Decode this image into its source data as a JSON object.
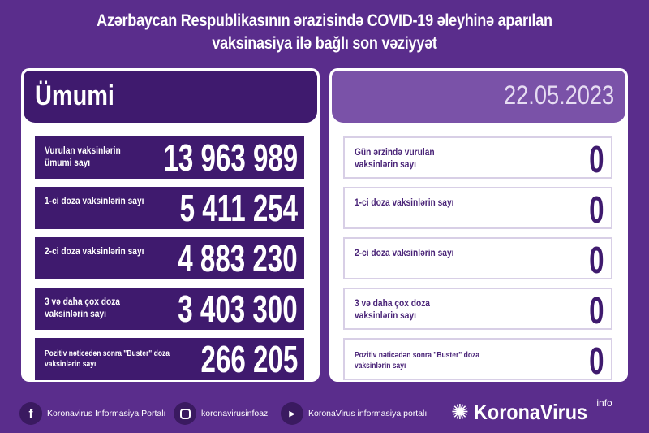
{
  "title": {
    "line1": "Azərbaycan Respublikasının ərazisində COVID-19 əleyhinə aparılan",
    "line2": "vaksinasiya ilə bağlı son vəziyyət"
  },
  "left": {
    "header": "Ümumi",
    "rows": [
      {
        "label": "Vurulan vaksinlərin ümumi sayı",
        "value": "13 963 989"
      },
      {
        "label": "1-ci doza vaksinlərin sayı",
        "value": "5 411 254"
      },
      {
        "label": "2-ci doza vaksinlərin sayı",
        "value": "4 883 230"
      },
      {
        "label": "3 və daha çox doza vaksinlərin sayı",
        "value": "3 403 300"
      },
      {
        "label": "Pozitiv nəticədən sonra \"Buster\" doza vaksinlərin sayı",
        "value": "266 205"
      }
    ]
  },
  "right": {
    "header": "22.05.2023",
    "rows": [
      {
        "label": "Gün ərzində vurulan vaksinlərin sayı",
        "value": "0"
      },
      {
        "label": "1-ci doza vaksinlərin sayı",
        "value": "0"
      },
      {
        "label": "2-ci doza vaksinlərin sayı",
        "value": "0"
      },
      {
        "label": "3 və daha çox doza vaksinlərin sayı",
        "value": "0"
      },
      {
        "label": "Pozitiv nəticədən sonra \"Buster\" doza vaksinlərin sayı",
        "value": "0"
      }
    ]
  },
  "footer": {
    "facebook": "Koronavirus İnformasiya Portalı",
    "instagram": "koronavirusinfoaz",
    "youtube": "KoronaVirus informasiya portalı",
    "logo": "KoronaVirus",
    "logo_sup": "info"
  },
  "colors": {
    "background": "#5a2d8c",
    "dark": "#3f1a6e",
    "light": "#7a52a8"
  }
}
